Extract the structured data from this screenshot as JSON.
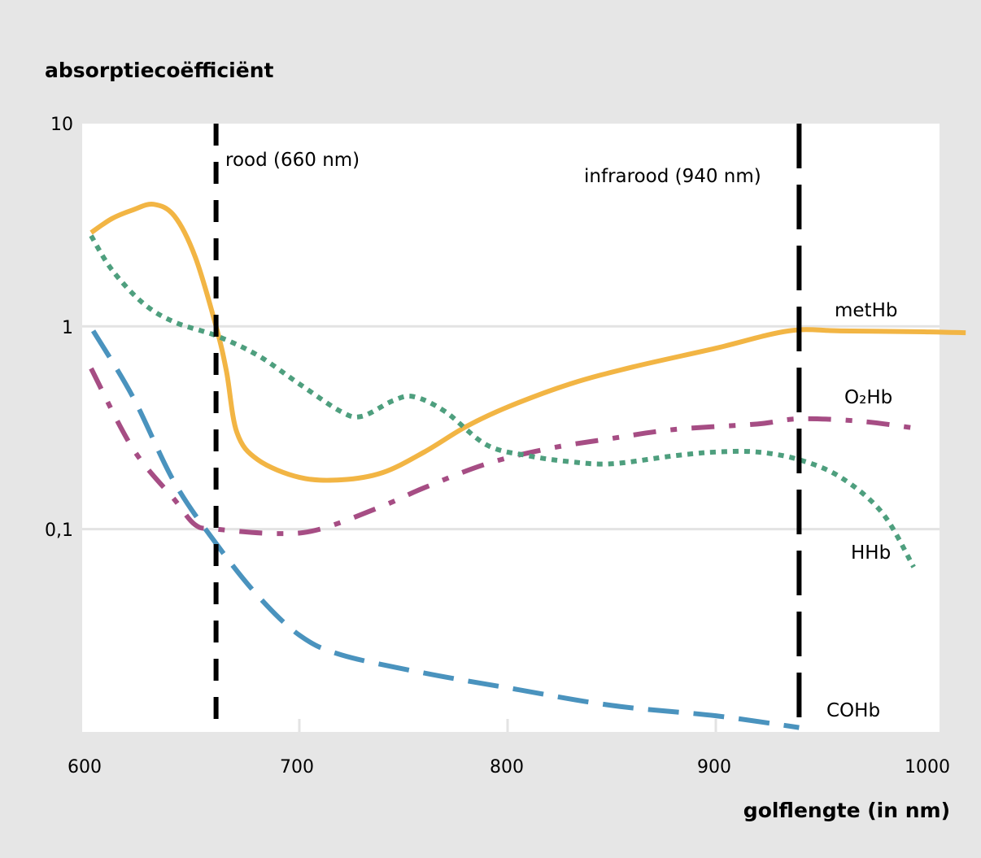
{
  "chart_data": {
    "type": "line",
    "title": "",
    "ylabel": "absorptiecoëfficiënt",
    "xlabel": "golflengte (in nm)",
    "xlim": [
      596,
      1020
    ],
    "ylim": [
      0.01,
      10
    ],
    "yscale": "log",
    "xticks": [
      600,
      700,
      800,
      900,
      1000
    ],
    "xtick_labels": [
      "600",
      "700",
      "800",
      "900",
      "1000"
    ],
    "yticks": [
      10,
      1,
      0.1
    ],
    "ytick_labels": [
      "10",
      "1",
      "0,1"
    ],
    "grid": "horizontal at 1 and 0,1; vertical tick stubs at 700, 800, 900",
    "legend": "inline labels at right",
    "reference_lines": [
      {
        "x": 660,
        "label": "rood (660 nm)"
      },
      {
        "x": 940,
        "label": "infrarood (940 nm)"
      }
    ],
    "series": [
      {
        "name": "metHb",
        "style": "solid",
        "color": "#F2B544",
        "x": [
          600,
          610,
          620,
          630,
          640,
          650,
          660,
          665,
          670,
          680,
          700,
          720,
          740,
          760,
          780,
          800,
          830,
          860,
          900,
          935,
          960,
          1000,
          1020
        ],
        "values": [
          2.9,
          3.4,
          3.75,
          4.0,
          3.5,
          2.2,
          1.0,
          0.6,
          0.3,
          0.22,
          0.18,
          0.175,
          0.19,
          0.24,
          0.32,
          0.4,
          0.52,
          0.63,
          0.78,
          0.95,
          0.95,
          0.94,
          0.93
        ]
      },
      {
        "name": "O₂Hb",
        "style": "dash-dot",
        "color": "#A64D84",
        "x": [
          600,
          620,
          640,
          650,
          660,
          690,
          710,
          740,
          760,
          790,
          820,
          850,
          880,
          920,
          940,
          970,
          1000
        ],
        "values": [
          0.62,
          0.25,
          0.14,
          0.105,
          0.1,
          0.095,
          0.1,
          0.13,
          0.16,
          0.21,
          0.25,
          0.28,
          0.31,
          0.33,
          0.35,
          0.34,
          0.31
        ]
      },
      {
        "name": "HHb",
        "style": "dotted",
        "color": "#4E9F7E",
        "x": [
          600,
          610,
          625,
          640,
          660,
          680,
          700,
          720,
          730,
          745,
          755,
          770,
          790,
          810,
          830,
          850,
          880,
          900,
          920,
          940,
          960,
          980,
          995
        ],
        "values": [
          2.8,
          1.9,
          1.3,
          1.05,
          0.9,
          0.72,
          0.52,
          0.38,
          0.36,
          0.43,
          0.45,
          0.38,
          0.26,
          0.23,
          0.215,
          0.21,
          0.23,
          0.24,
          0.24,
          0.22,
          0.18,
          0.12,
          0.065
        ]
      },
      {
        "name": "COHb",
        "style": "dashed",
        "color": "#4A93BE",
        "x": [
          601,
          620,
          640,
          660,
          680,
          700,
          720,
          760,
          800,
          850,
          900,
          940
        ],
        "values": [
          0.95,
          0.45,
          0.17,
          0.085,
          0.047,
          0.03,
          0.024,
          0.0195,
          0.0165,
          0.0135,
          0.012,
          0.0105
        ]
      }
    ],
    "series_labels": [
      {
        "name": "metHb",
        "text": "metHb"
      },
      {
        "name": "O2Hb",
        "text": "O₂Hb"
      },
      {
        "name": "HHb",
        "text": "HHb"
      },
      {
        "name": "COHb",
        "text": "COHb"
      }
    ]
  }
}
